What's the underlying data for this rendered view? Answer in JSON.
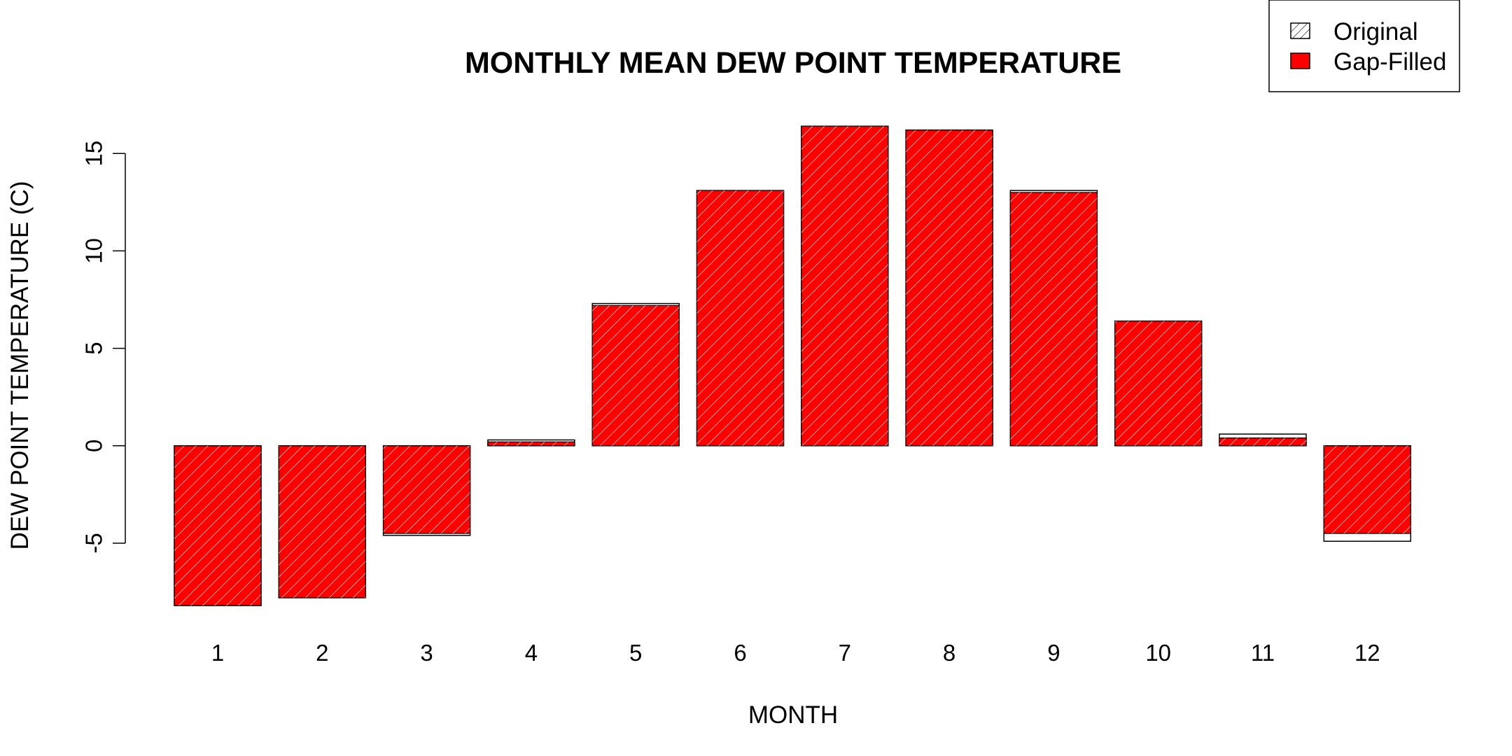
{
  "chart_data": {
    "type": "bar",
    "title": "MONTHLY MEAN DEW POINT TEMPERATURE",
    "xlabel": "MONTH",
    "ylabel": "DEW POINT TEMPERATURE (C)",
    "categories": [
      "1",
      "2",
      "3",
      "4",
      "5",
      "6",
      "7",
      "8",
      "9",
      "10",
      "11",
      "12"
    ],
    "series": [
      {
        "name": "Original",
        "pattern": "hatched",
        "color": "#ffffff",
        "values": [
          -8.2,
          -7.8,
          -4.6,
          0.3,
          7.3,
          13.1,
          16.4,
          16.2,
          13.1,
          6.4,
          0.6,
          -4.9
        ]
      },
      {
        "name": "Gap-Filled",
        "color": "#ff0000",
        "values": [
          -8.2,
          -7.8,
          -4.5,
          0.2,
          7.2,
          13.1,
          16.4,
          16.2,
          13.0,
          6.4,
          0.4,
          -4.5
        ]
      }
    ],
    "ylim": [
      -8.7,
      17.2
    ],
    "yticks": [
      -5,
      0,
      5,
      10,
      15
    ],
    "grid": false,
    "legend": "top-right"
  }
}
